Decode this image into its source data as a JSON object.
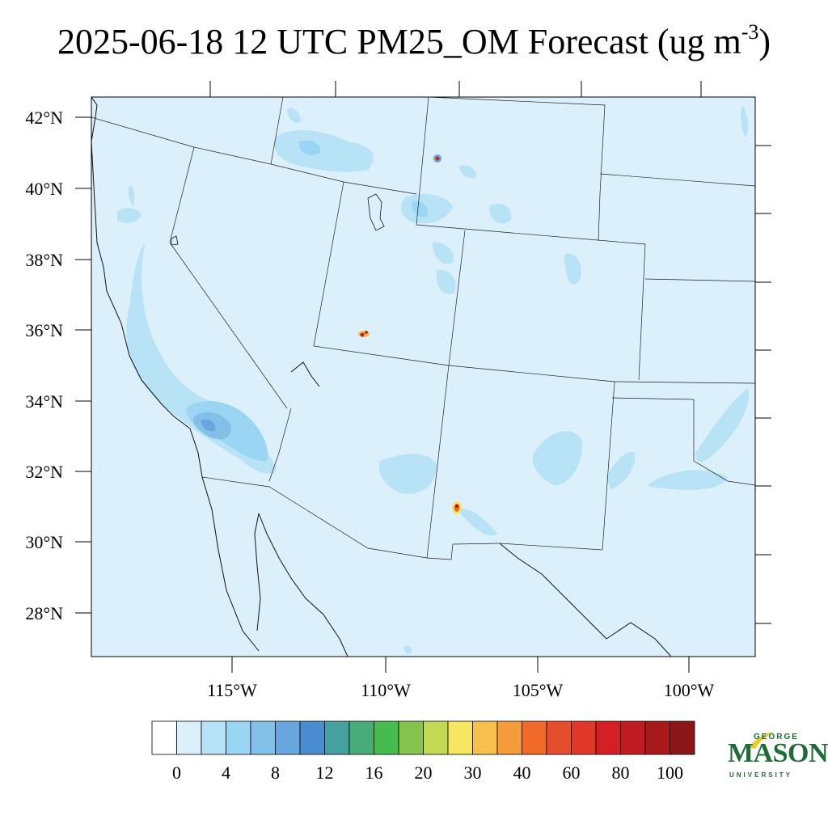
{
  "title": {
    "text": "2025-06-18 12 UTC PM25_OM Forecast (ug m",
    "superscript": "-3",
    "close": ")"
  },
  "map": {
    "lat_labels": [
      "42°N",
      "40°N",
      "38°N",
      "36°N",
      "34°N",
      "32°N",
      "30°N",
      "28°N"
    ],
    "lon_labels": [
      "115°W",
      "110°W",
      "105°W",
      "100°W"
    ],
    "background_color": "#dcf0fb",
    "hotspots": [
      {
        "name": "hotspot-wyoming",
        "value": "80"
      },
      {
        "name": "hotspot-utah",
        "value": "80"
      },
      {
        "name": "hotspot-new-mexico",
        "value": "100"
      }
    ]
  },
  "colorbar": {
    "labels": [
      "0",
      "4",
      "8",
      "12",
      "16",
      "20",
      "30",
      "40",
      "60",
      "80",
      "100"
    ],
    "colors": [
      "#ffffff",
      "#dcf0fb",
      "#b8e2f5",
      "#9ad5f3",
      "#82c0e8",
      "#68a7de",
      "#4a8ccf",
      "#46a0a0",
      "#48ac78",
      "#46bb4e",
      "#84c44e",
      "#c3d955",
      "#f7e661",
      "#f7bf4c",
      "#f69b3c",
      "#f26a2a",
      "#e64d2c",
      "#df3728",
      "#d41f26",
      "#bf1b22",
      "#a8191c",
      "#8c1519"
    ]
  },
  "logo": {
    "line1": "GEORGE",
    "line2": "MASON",
    "line3": "UNIVERSITY",
    "color": "#1e6b36",
    "accent": "#f2c72b"
  }
}
